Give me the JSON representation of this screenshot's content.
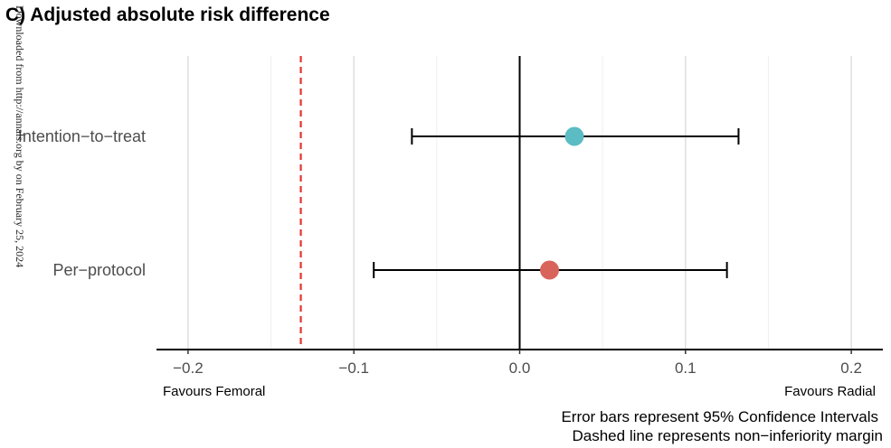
{
  "chart_data": {
    "type": "forest",
    "title": "C) Adjusted absolute risk difference",
    "categories": [
      "Intention−to−treat",
      "Per−protocol"
    ],
    "series": [
      {
        "name": "Intention−to−treat",
        "estimate": 0.033,
        "ci_low": -0.065,
        "ci_high": 0.132,
        "color": "#5bbcc4"
      },
      {
        "name": "Per−protocol",
        "estimate": 0.018,
        "ci_low": -0.088,
        "ci_high": 0.125,
        "color": "#d9645c"
      }
    ],
    "x_ticks": [
      -0.2,
      -0.1,
      0.0,
      0.1,
      0.2
    ],
    "x_tick_labels": [
      "−0.2",
      "−0.1",
      "0.0",
      "0.1",
      "0.2"
    ],
    "xlim": [
      -0.22,
      0.22
    ],
    "reference_line": 0.0,
    "noninferiority_margin": -0.132,
    "noninferiority_color": "#e3342f",
    "grid": "vertical",
    "left_annotation": "Favours Femoral",
    "right_annotation": "Favours Radial",
    "caption_lines": [
      "Error bars represent 95% Confidence Intervals",
      "Dashed line represents non−inferiority margin"
    ]
  },
  "watermark": "Downloaded from http://annals.org by on February 25, 2024"
}
